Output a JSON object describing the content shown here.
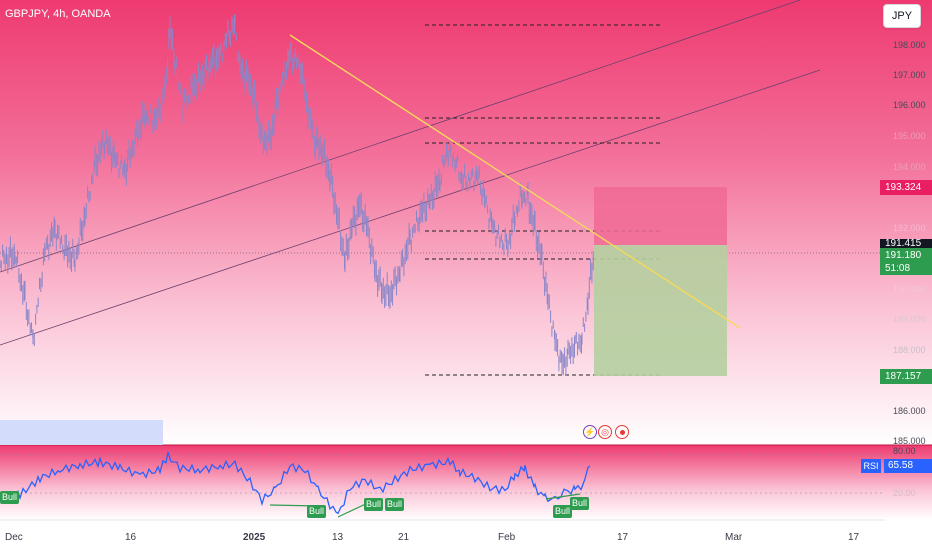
{
  "header": {
    "symbol": "GBPJPY, 4h, OANDA",
    "currency_button": "JPY"
  },
  "price_axis": {
    "ticks": [
      "198.000",
      "197.000",
      "196.000",
      "195.000",
      "194.000",
      "193.000",
      "192.000",
      "190.000",
      "189.000",
      "188.000",
      "186.000",
      "185.000"
    ],
    "labels": {
      "target_price": "193.324",
      "entry_price": "191.415",
      "last_price": "191.180",
      "countdown": "51:08",
      "stop_price": "187.157"
    }
  },
  "time_axis": {
    "ticks": [
      "Dec",
      "16",
      "2025",
      "13",
      "21",
      "Feb",
      "17",
      "Mar",
      "17"
    ]
  },
  "rsi": {
    "badge": "RSI",
    "value": "65.58",
    "level_top": "80.00",
    "level_bottom": "20.00",
    "bull_tags": [
      "Bull",
      "Bull",
      "Bull",
      "Bull",
      "Bull",
      "Bull"
    ]
  },
  "icons": [
    "lightning-icon",
    "target-icon"
  ],
  "colors": {
    "background_top": "#f0306a",
    "background_bottom": "#ffffff",
    "candle": "#8a86c8",
    "trendline": "#f5d95a",
    "rsi_line": "#2962ff",
    "profit_zone": "#b5cfa0",
    "loss_zone": "#f06a95",
    "bull_tag": "#2e9c4f"
  }
}
